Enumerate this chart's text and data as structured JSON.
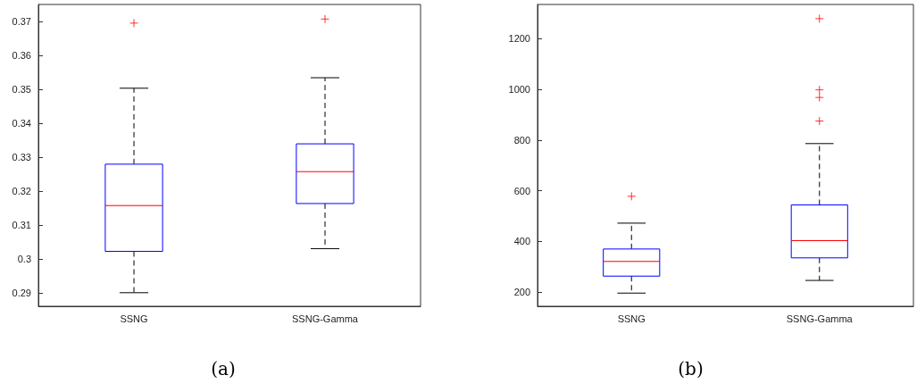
{
  "chart_data": [
    {
      "type": "box",
      "title": "(a)",
      "categories": [
        "SSNG",
        "SSNG-Gamma"
      ],
      "ylim": [
        0.286,
        0.375
      ],
      "yticks": [
        0.29,
        0.3,
        0.31,
        0.32,
        0.33,
        0.34,
        0.35,
        0.36,
        0.37
      ],
      "grid": false,
      "series": [
        {
          "color": "#0000ff",
          "boxes": [
            {
              "low": 0.29,
              "q1": 0.3022,
              "median": 0.3157,
              "q3": 0.3279,
              "high": 0.3503,
              "outliers": [
                0.3695
              ]
            },
            {
              "low": 0.303,
              "q1": 0.3163,
              "median": 0.3257,
              "q3": 0.3339,
              "high": 0.3534,
              "outliers": [
                0.3707
              ]
            }
          ]
        }
      ]
    },
    {
      "type": "box",
      "title": "(b)",
      "categories": [
        "SSNG",
        "SSNG-Gamma"
      ],
      "ylim": [
        144,
        1335
      ],
      "yticks": [
        200,
        400,
        600,
        800,
        1000,
        1200
      ],
      "grid": false,
      "series": [
        {
          "color": "#0000ff",
          "boxes": [
            {
              "low": 196,
              "q1": 263,
              "median": 321,
              "q3": 370,
              "high": 472,
              "outliers": [
                578
              ]
            },
            {
              "low": 246,
              "q1": 335,
              "median": 403,
              "q3": 544,
              "high": 786,
              "outliers": [
                1279,
                998,
                968,
                875
              ]
            }
          ]
        }
      ]
    }
  ]
}
